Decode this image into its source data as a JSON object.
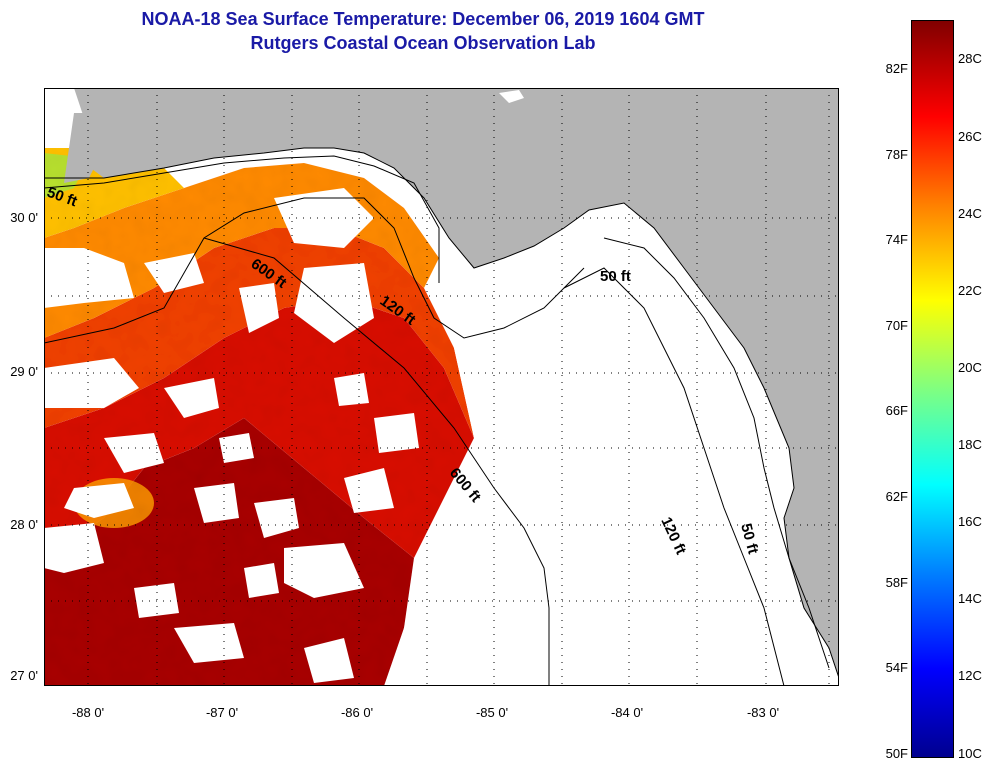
{
  "header": {
    "title": "NOAA-18 Sea Surface Temperature:  December 06, 2019 1604 GMT",
    "subtitle": "Rutgers Coastal Ocean Observation Lab"
  },
  "map": {
    "latitude_labels": [
      "30 0'",
      "29 0'",
      "28 0'",
      "27 0'"
    ],
    "longitude_labels": [
      "-88 0'",
      "-87 0'",
      "-86 0'",
      "-85 0'",
      "-84 0'",
      "-83 0'"
    ],
    "contour_labels": [
      "50 ft",
      "600 ft",
      "120 ft",
      "50 ft",
      "600 ft",
      "120 ft",
      "50 ft"
    ],
    "land_color": "#b4b4b4",
    "no_data_color": "#ffffff"
  },
  "colorbar": {
    "fahrenheit_labels": [
      "82F",
      "78F",
      "74F",
      "70F",
      "66F",
      "62F",
      "58F",
      "54F",
      "50F"
    ],
    "celsius_labels": [
      "28C",
      "26C",
      "24C",
      "22C",
      "20C",
      "18C",
      "16C",
      "14C",
      "12C",
      "10C"
    ]
  }
}
